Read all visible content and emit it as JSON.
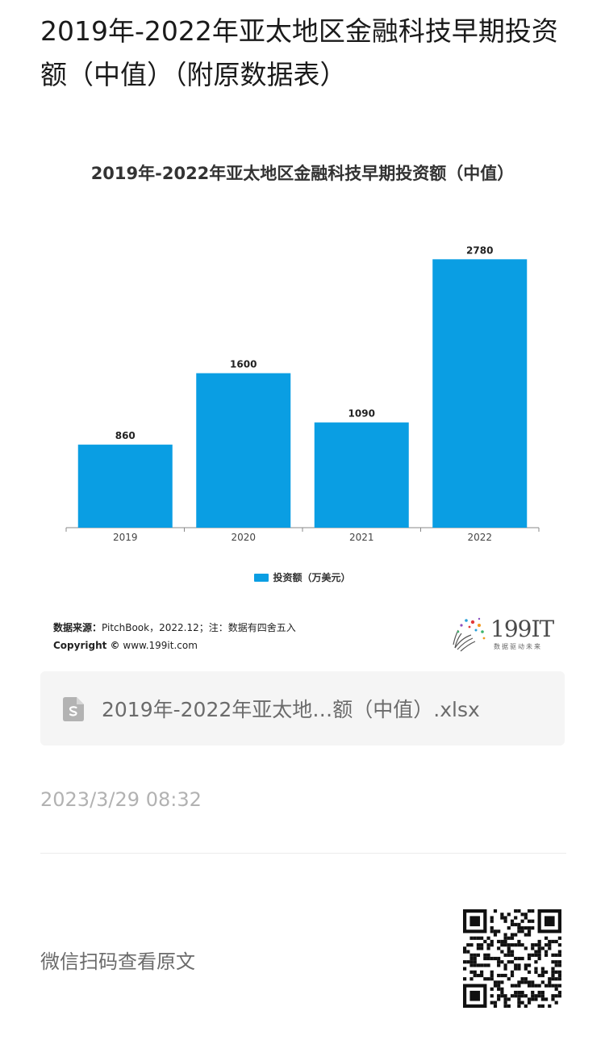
{
  "page": {
    "title": "2019年-2022年亚太地区金融科技早期投资额（中值）（附原数据表）"
  },
  "chart_data": {
    "type": "bar",
    "title": "2019年-2022年亚太地区金融科技早期投资额（中值）",
    "categories": [
      "2019",
      "2020",
      "2021",
      "2022"
    ],
    "series": [
      {
        "name": "投资额（万美元）",
        "values": [
          860,
          1600,
          1090,
          2780
        ],
        "color": "#0a9ee3"
      }
    ],
    "ylim": [
      0,
      3000
    ],
    "grid": false,
    "legend_position": "bottom"
  },
  "source": {
    "label": "数据来源：",
    "text": "PitchBook，2022.12；注：数据有四舍五入",
    "copyright_label": "Copyright ©",
    "copyright_text": "www.199it.com"
  },
  "logo": {
    "text": "199IT",
    "tagline": "数据驱动未来"
  },
  "attachment": {
    "icon": "spreadsheet-file-icon",
    "filename": "2019年-2022年亚太地…额（中值）.xlsx"
  },
  "timestamp": "2023/3/29 08:32",
  "qr": {
    "caption": "微信扫码查看原文",
    "icon": "qr-code"
  }
}
